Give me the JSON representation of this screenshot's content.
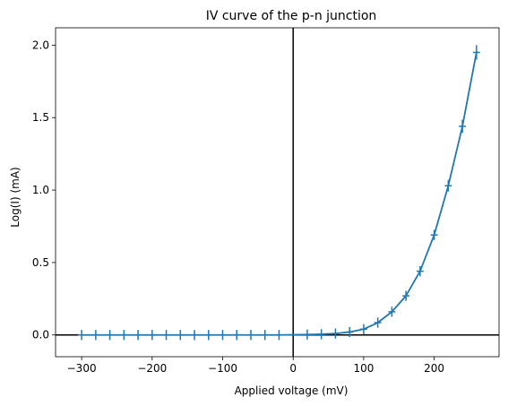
{
  "chart_data": {
    "type": "line",
    "title": "IV curve of the p-n junction",
    "xlabel": "Applied voltage (mV)",
    "ylabel": "Log(I) (mA)",
    "xlim": [
      -337,
      292
    ],
    "ylim": [
      -0.15,
      2.12
    ],
    "xticks": [
      -300,
      -200,
      -100,
      0,
      100,
      200
    ],
    "yticks": [
      0.0,
      0.5,
      1.0,
      1.5,
      2.0
    ],
    "xtick_labels": [
      "−300",
      "−200",
      "−100",
      "0",
      "100",
      "200"
    ],
    "ytick_labels": [
      "0.0",
      "0.5",
      "1.0",
      "1.5",
      "2.0"
    ],
    "grid": false,
    "reference_lines": {
      "x": 0,
      "y": 0,
      "color": "#000000"
    },
    "series": [
      {
        "color": "#1f77b4",
        "x": [
          -300,
          -280,
          -260,
          -240,
          -220,
          -200,
          -180,
          -160,
          -140,
          -120,
          -100,
          -80,
          -60,
          -40,
          -20,
          20,
          40,
          60,
          80,
          100,
          120,
          140,
          160,
          180,
          200,
          220,
          240,
          260
        ],
        "y": [
          0,
          0,
          0,
          0,
          0,
          0,
          0,
          0,
          0,
          0,
          0,
          0,
          0,
          0,
          0,
          0.003,
          0.005,
          0.01,
          0.02,
          0.04,
          0.085,
          0.16,
          0.27,
          0.44,
          0.69,
          1.03,
          1.44,
          1.95
        ],
        "yerr": [
          0.035,
          0.035,
          0.035,
          0.035,
          0.035,
          0.035,
          0.035,
          0.035,
          0.035,
          0.035,
          0.035,
          0.035,
          0.035,
          0.035,
          0.035,
          0.035,
          0.035,
          0.035,
          0.035,
          0.035,
          0.035,
          0.035,
          0.035,
          0.035,
          0.035,
          0.04,
          0.045,
          0.05
        ],
        "xerr": 5
      }
    ]
  }
}
